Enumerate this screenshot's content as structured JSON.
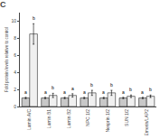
{
  "chart_data": {
    "type": "bar",
    "title": "C",
    "categories": [
      "Lamin A/C",
      "Lamin B1",
      "Lamin B2",
      "NPC 1/2",
      "Nesprin 1/2",
      "SUN 1/2",
      "Emerin/LAP2"
    ],
    "ylabel": "Fold protein levels relative to control",
    "series": [
      {
        "color": "#c8c8c8",
        "values": [
          1.0,
          1.0,
          1.0,
          1.0,
          1.0,
          1.0,
          1.0
        ],
        "errors": [
          0.08,
          0.08,
          0.08,
          0.08,
          0.08,
          0.08,
          0.08
        ],
        "annotations": [
          "a",
          "a",
          "a",
          "a",
          "a",
          "a",
          "a"
        ]
      },
      {
        "color": "#f0f0f0",
        "values": [
          8.5,
          1.3,
          1.3,
          1.6,
          1.6,
          1.2,
          1.2
        ],
        "errors": [
          1.2,
          0.25,
          0.2,
          0.3,
          0.3,
          0.15,
          0.15
        ],
        "annotations": [
          "b",
          "b",
          "a",
          "b",
          "b",
          "b",
          "b"
        ]
      }
    ],
    "ylim": [
      0,
      11
    ],
    "yticks": [
      0,
      2,
      4,
      6,
      8,
      10
    ],
    "grid": false
  }
}
